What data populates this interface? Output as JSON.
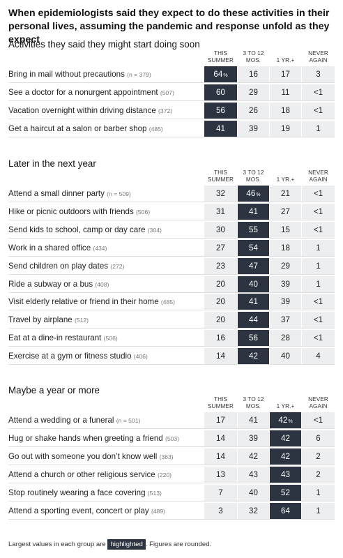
{
  "title": "When epidemiologists said they expect to do these activities in their personal lives, assuming the pandemic and response unfold as they expect",
  "columns": [
    {
      "line1": "THIS",
      "line2": "SUMMER"
    },
    {
      "line1": "3 TO 12",
      "line2": "MOS."
    },
    {
      "line1": "",
      "line2": "1 YR.+"
    },
    {
      "line1": "NEVER",
      "line2": "AGAIN"
    }
  ],
  "chart_data": {
    "type": "table",
    "title": "When epidemiologists said they expect to do these activities in their personal lives, assuming the pandemic and response unfold as they expect",
    "columns": [
      "THIS SUMMER",
      "3 TO 12 MOS.",
      "1 YR.+",
      "NEVER AGAIN"
    ],
    "groups": [
      {
        "heading": "Activities they said they might start doing soon",
        "highlight_col": 0,
        "rows": [
          {
            "label": "Bring in mail without precautions",
            "n": "(n = 379)",
            "values": [
              "64",
              "16",
              "17",
              "3"
            ]
          },
          {
            "label": "See a doctor for a nonurgent appointment",
            "n": "(507)",
            "values": [
              "60",
              "29",
              "11",
              "<1"
            ]
          },
          {
            "label": "Vacation overnight within driving distance",
            "n": "(372)",
            "values": [
              "56",
              "26",
              "18",
              "<1"
            ]
          },
          {
            "label": "Get a haircut at a salon or barber shop",
            "n": "(485)",
            "values": [
              "41",
              "39",
              "19",
              "1"
            ]
          }
        ]
      },
      {
        "heading": "Later in the next year",
        "highlight_col": 1,
        "rows": [
          {
            "label": "Attend a small dinner party",
            "n": "(n = 509)",
            "values": [
              "32",
              "46",
              "21",
              "<1"
            ]
          },
          {
            "label": "Hike or picnic outdoors with friends",
            "n": "(506)",
            "values": [
              "31",
              "41",
              "27",
              "<1"
            ]
          },
          {
            "label": "Send kids to school, camp or day care",
            "n": "(304)",
            "values": [
              "30",
              "55",
              "15",
              "<1"
            ]
          },
          {
            "label": "Work in a shared office",
            "n": "(434)",
            "values": [
              "27",
              "54",
              "18",
              "1"
            ]
          },
          {
            "label": "Send children on play dates",
            "n": "(272)",
            "values": [
              "23",
              "47",
              "29",
              "1"
            ]
          },
          {
            "label": "Ride a subway or a bus",
            "n": "(408)",
            "values": [
              "20",
              "40",
              "39",
              "1"
            ]
          },
          {
            "label": "Visit elderly relative or friend in their home",
            "n": "(485)",
            "values": [
              "20",
              "41",
              "39",
              "<1"
            ]
          },
          {
            "label": "Travel by airplane",
            "n": "(512)",
            "values": [
              "20",
              "44",
              "37",
              "<1"
            ]
          },
          {
            "label": "Eat at a dine-in restaurant",
            "n": "(506)",
            "values": [
              "16",
              "56",
              "28",
              "<1"
            ]
          },
          {
            "label": "Exercise at a gym or fitness studio",
            "n": "(406)",
            "values": [
              "14",
              "42",
              "40",
              "4"
            ]
          }
        ]
      },
      {
        "heading": "Maybe a year or more",
        "highlight_col": 2,
        "rows": [
          {
            "label": "Attend a wedding or a funeral",
            "n": "(n = 501)",
            "values": [
              "17",
              "41",
              "42",
              "<1"
            ]
          },
          {
            "label": "Hug or shake hands when greeting a friend",
            "n": "(503)",
            "values": [
              "14",
              "39",
              "42",
              "6"
            ]
          },
          {
            "label": "Go out with someone you don’t know well",
            "n": "(363)",
            "values": [
              "14",
              "42",
              "42",
              "2"
            ]
          },
          {
            "label": "Attend a church or other religious service",
            "n": "(220)",
            "values": [
              "13",
              "43",
              "43",
              "2"
            ]
          },
          {
            "label": "Stop routinely wearing a face covering",
            "n": "(513)",
            "values": [
              "7",
              "40",
              "52",
              "1"
            ]
          },
          {
            "label": "Attend a sporting event, concert or play",
            "n": "(489)",
            "values": [
              "3",
              "32",
              "64",
              "1"
            ]
          }
        ]
      }
    ]
  },
  "percent_sign": "%",
  "footnote": {
    "before": "Largest values in each group are ",
    "chip": "highlighted",
    "after": ". Figures are rounded."
  },
  "colors": {
    "highlight": "#2b3440",
    "cell_background": "#eceeef",
    "separator": "#dedede"
  }
}
